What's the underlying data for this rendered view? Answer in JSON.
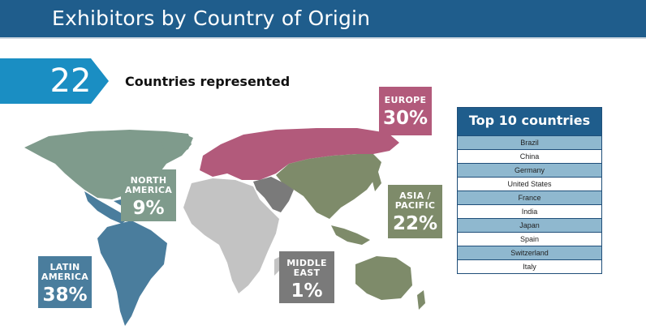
{
  "header": {
    "title": "Exhibitors by Country of Origin"
  },
  "summary": {
    "count": "22",
    "label": "Countries represented"
  },
  "colors": {
    "header": "#1f5d8c",
    "banner": "#1a8ec3",
    "europe": "#b25a7b",
    "north_america": "#7f9b8c",
    "asia_pacific": "#7e8b6a",
    "latin_america": "#4a7d9d",
    "middle_east": "#7a7a7a",
    "africa": "#c3c3c3"
  },
  "chart_data": {
    "type": "table",
    "regions": [
      {
        "name_line1": "EUROPE",
        "name_line2": "",
        "percent": "30%",
        "value": 30
      },
      {
        "name_line1": "NORTH",
        "name_line2": "AMERICA",
        "percent": "9%",
        "value": 9
      },
      {
        "name_line1": "ASIA /",
        "name_line2": "PACIFIC",
        "percent": "22%",
        "value": 22
      },
      {
        "name_line1": "LATIN",
        "name_line2": "AMERICA",
        "percent": "38%",
        "value": 38
      },
      {
        "name_line1": "MIDDLE",
        "name_line2": "EAST",
        "percent": "1%",
        "value": 1
      }
    ],
    "top10": {
      "title": "Top 10 countries",
      "countries": [
        "Brazil",
        "China",
        "Germany",
        "United States",
        "France",
        "India",
        "Japan",
        "Spain",
        "Switzerland",
        "Italy"
      ]
    }
  }
}
